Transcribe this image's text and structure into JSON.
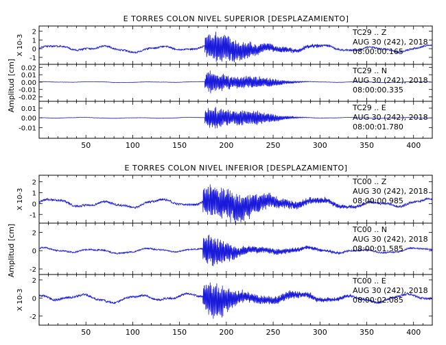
{
  "chart_data": [
    {
      "type": "line",
      "title": "E TORRES COLON NIVEL SUPERIOR [DESPLAZAMIENTO]",
      "xlim": [
        0,
        420
      ],
      "x_ticks": [
        50,
        100,
        150,
        200,
        250,
        300,
        350,
        400
      ],
      "shared_ylabel": "Amplitud [cm]",
      "line_color": "#1a1adb",
      "event_onset_s": 180,
      "panels": [
        {
          "component_label": "TC29 .. Z",
          "date_label": "AUG 30 (242), 2018",
          "time_label": "08:00:00.165",
          "ylabel": "X 10-3",
          "ylim": [
            -1.8,
            2.6
          ],
          "y_ticks": [
            -1,
            0,
            1,
            2
          ],
          "y_tick_labels": [
            "-1",
            "0",
            "1",
            "2"
          ],
          "background_amp": 0.45,
          "peak_amp": 1.9,
          "peak_center_s": 190,
          "peak_width_s": 35,
          "coda_amp": 0.5,
          "coda_center_s": 225,
          "coda_width_s": 70
        },
        {
          "component_label": "TC29 .. N",
          "date_label": "AUG 30 (242), 2018",
          "time_label": "08:00:00.335",
          "ylabel": "",
          "ylim": [
            -0.026,
            0.024
          ],
          "y_ticks": [
            -0.02,
            -0.01,
            0.0,
            0.01,
            0.02
          ],
          "y_tick_labels": [
            "-0.02",
            "-0.01",
            "0.00",
            "0.01",
            "0.02"
          ],
          "background_amp": 0.0007,
          "peak_amp": 0.017,
          "peak_center_s": 185,
          "peak_width_s": 15,
          "coda_amp": 0.012,
          "coda_center_s": 225,
          "coda_width_s": 35
        },
        {
          "component_label": "TC29 .. E",
          "date_label": "AUG 30 (242), 2018",
          "time_label": "08:00:01.780",
          "ylabel": "",
          "ylim": [
            -0.021,
            0.017
          ],
          "y_ticks": [
            -0.01,
            0.0,
            0.01
          ],
          "y_tick_labels": [
            "-0.01",
            "0.00",
            "0.01"
          ],
          "background_amp": 0.0006,
          "peak_amp": 0.012,
          "peak_center_s": 185,
          "peak_width_s": 15,
          "coda_amp": 0.011,
          "coda_center_s": 222,
          "coda_width_s": 35
        }
      ]
    },
    {
      "type": "line",
      "title": "E TORRES COLON NIVEL INFERIOR [DESPLAZAMIENTO]",
      "xlim": [
        0,
        420
      ],
      "x_ticks": [
        50,
        100,
        150,
        200,
        250,
        300,
        350,
        400
      ],
      "shared_ylabel": "Amplitud [cm]",
      "line_color": "#1a1adb",
      "event_onset_s": 178,
      "panels": [
        {
          "component_label": "TC00 .. Z",
          "date_label": "AUG 30 (242), 2018",
          "time_label": "08:00:00.985",
          "ylabel": "X 10-3",
          "ylim": [
            -1.8,
            2.6
          ],
          "y_ticks": [
            -1,
            0,
            1,
            2
          ],
          "y_tick_labels": [
            "-1",
            "0",
            "1",
            "2"
          ],
          "background_amp": 0.45,
          "peak_amp": 1.8,
          "peak_center_s": 195,
          "peak_width_s": 40,
          "coda_amp": 0.55,
          "coda_center_s": 240,
          "coda_width_s": 80
        },
        {
          "component_label": "TC00 .. N",
          "date_label": "AUG 30 (242), 2018",
          "time_label": "08:00:01.585",
          "ylabel": "",
          "ylim": [
            -2.6,
            3.0
          ],
          "y_ticks": [
            -2,
            0,
            2
          ],
          "y_tick_labels": [
            "-2",
            "0",
            "2"
          ],
          "background_amp": 0.35,
          "peak_amp": 2.2,
          "peak_center_s": 185,
          "peak_width_s": 20,
          "coda_amp": 0.5,
          "coda_center_s": 230,
          "coda_width_s": 70
        },
        {
          "component_label": "TC00 .. E",
          "date_label": "AUG 30 (242), 2018",
          "time_label": "08:00:02.085",
          "ylabel": "X 10-3",
          "ylim": [
            -3.0,
            2.6
          ],
          "y_ticks": [
            -2,
            0,
            2
          ],
          "y_tick_labels": [
            "-2",
            "0",
            "2"
          ],
          "background_amp": 0.55,
          "peak_amp": 2.2,
          "peak_center_s": 185,
          "peak_width_s": 22,
          "coda_amp": 0.7,
          "coda_center_s": 230,
          "coda_width_s": 80
        }
      ]
    }
  ]
}
